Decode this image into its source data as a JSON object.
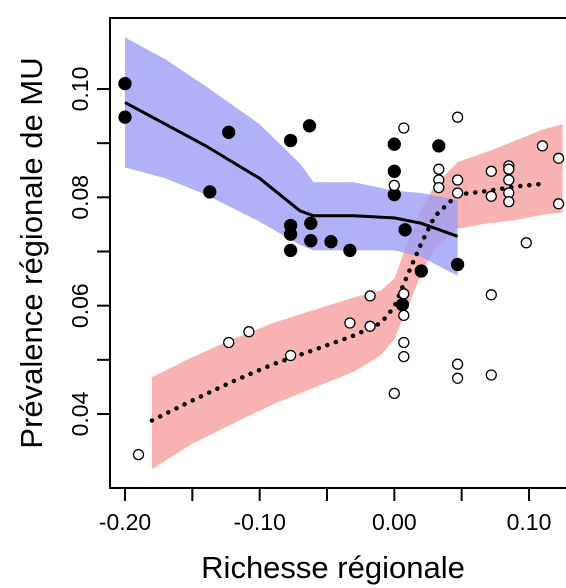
{
  "chart_data": {
    "type": "scatter",
    "xlabel": "Richesse régionale",
    "ylabel": "Prévalence régionale de MU",
    "xlim": [
      -0.21,
      0.125
    ],
    "ylim": [
      0.028,
      0.114
    ],
    "x_ticks": [
      {
        "value": -0.2,
        "label": "-0.20"
      },
      {
        "value": -0.1,
        "label": "-0.10"
      },
      {
        "value": 0.0,
        "label": "0.00"
      },
      {
        "value": 0.1,
        "label": "0.10"
      }
    ],
    "y_ticks": [
      {
        "value": 0.04,
        "label": "0.04"
      },
      {
        "value": 0.06,
        "label": "0.06"
      },
      {
        "value": 0.08,
        "label": "0.08"
      },
      {
        "value": 0.1,
        "label": "0.10"
      }
    ],
    "grid": false,
    "colors": {
      "filled_band": "#9d9df5",
      "open_band": "#f7a0a0",
      "filled_marker": "#000000",
      "open_marker": "#ffffff"
    },
    "series": [
      {
        "marker": "filled",
        "line_style": "solid",
        "points": [
          [
            -0.2,
            0.101
          ],
          [
            -0.2,
            0.0948
          ],
          [
            -0.123,
            0.092
          ],
          [
            -0.137,
            0.081
          ],
          [
            -0.077,
            0.0905
          ],
          [
            -0.063,
            0.0932
          ],
          [
            -0.077,
            0.0748
          ],
          [
            -0.077,
            0.0732
          ],
          [
            -0.077,
            0.0702
          ],
          [
            -0.062,
            0.0752
          ],
          [
            -0.062,
            0.072
          ],
          [
            -0.047,
            0.0718
          ],
          [
            -0.033,
            0.0702
          ],
          [
            0.0,
            0.0898
          ],
          [
            0.0,
            0.0848
          ],
          [
            0.0,
            0.0805
          ],
          [
            0.008,
            0.074
          ],
          [
            0.006,
            0.0602
          ],
          [
            0.02,
            0.0664
          ],
          [
            0.033,
            0.0895
          ],
          [
            0.047,
            0.0676
          ]
        ],
        "smooth": [
          [
            -0.2,
            0.0975
          ],
          [
            -0.17,
            0.0935
          ],
          [
            -0.14,
            0.0895
          ],
          [
            -0.1,
            0.0835
          ],
          [
            -0.07,
            0.0775
          ],
          [
            -0.06,
            0.0766
          ],
          [
            -0.03,
            0.0766
          ],
          [
            0.0,
            0.0762
          ],
          [
            0.02,
            0.0752
          ],
          [
            0.047,
            0.0728
          ]
        ],
        "band_upper": [
          [
            -0.2,
            0.1095
          ],
          [
            -0.17,
            0.1055
          ],
          [
            -0.14,
            0.1005
          ],
          [
            -0.1,
            0.0935
          ],
          [
            -0.07,
            0.0862
          ],
          [
            -0.06,
            0.0828
          ],
          [
            -0.03,
            0.0828
          ],
          [
            0.0,
            0.0812
          ],
          [
            0.02,
            0.0808
          ],
          [
            0.047,
            0.0795
          ]
        ],
        "band_lower": [
          [
            -0.2,
            0.0855
          ],
          [
            -0.17,
            0.0835
          ],
          [
            -0.14,
            0.0805
          ],
          [
            -0.1,
            0.0755
          ],
          [
            -0.07,
            0.0712
          ],
          [
            -0.06,
            0.0702
          ],
          [
            -0.03,
            0.0702
          ],
          [
            0.0,
            0.0702
          ],
          [
            0.02,
            0.069
          ],
          [
            0.047,
            0.0655
          ]
        ]
      },
      {
        "marker": "open",
        "line_style": "dotted",
        "points": [
          [
            -0.19,
            0.0325
          ],
          [
            -0.123,
            0.0532
          ],
          [
            -0.108,
            0.0552
          ],
          [
            -0.077,
            0.0508
          ],
          [
            -0.033,
            0.0568
          ],
          [
            -0.018,
            0.0562
          ],
          [
            -0.018,
            0.0618
          ],
          [
            0.0,
            0.0438
          ],
          [
            0.007,
            0.0928
          ],
          [
            0.0,
            0.0822
          ],
          [
            0.007,
            0.0622
          ],
          [
            0.007,
            0.0582
          ],
          [
            0.007,
            0.0532
          ],
          [
            0.007,
            0.0506
          ],
          [
            0.033,
            0.0852
          ],
          [
            0.033,
            0.0832
          ],
          [
            0.033,
            0.0818
          ],
          [
            0.047,
            0.0948
          ],
          [
            0.047,
            0.0832
          ],
          [
            0.047,
            0.0808
          ],
          [
            0.047,
            0.0492
          ],
          [
            0.047,
            0.0466
          ],
          [
            0.072,
            0.0848
          ],
          [
            0.072,
            0.0802
          ],
          [
            0.085,
            0.0858
          ],
          [
            0.085,
            0.0852
          ],
          [
            0.085,
            0.0832
          ],
          [
            0.085,
            0.0808
          ],
          [
            0.085,
            0.0792
          ],
          [
            0.072,
            0.062
          ],
          [
            0.072,
            0.0472
          ],
          [
            0.098,
            0.0716
          ],
          [
            0.11,
            0.0895
          ],
          [
            0.122,
            0.0872
          ],
          [
            0.122,
            0.0788
          ]
        ],
        "smooth": [
          [
            -0.18,
            0.0388
          ],
          [
            -0.15,
            0.0425
          ],
          [
            -0.12,
            0.046
          ],
          [
            -0.09,
            0.0492
          ],
          [
            -0.06,
            0.0518
          ],
          [
            -0.03,
            0.0545
          ],
          [
            -0.01,
            0.0568
          ],
          [
            0.0,
            0.0598
          ],
          [
            0.01,
            0.0658
          ],
          [
            0.02,
            0.0715
          ],
          [
            0.03,
            0.0765
          ],
          [
            0.047,
            0.0805
          ],
          [
            0.07,
            0.0812
          ],
          [
            0.09,
            0.082
          ],
          [
            0.11,
            0.0825
          ]
        ],
        "band_upper": [
          [
            -0.18,
            0.0468
          ],
          [
            -0.15,
            0.0505
          ],
          [
            -0.12,
            0.0538
          ],
          [
            -0.09,
            0.0568
          ],
          [
            -0.06,
            0.0592
          ],
          [
            -0.03,
            0.0615
          ],
          [
            -0.01,
            0.0628
          ],
          [
            0.0,
            0.065
          ],
          [
            0.01,
            0.0718
          ],
          [
            0.02,
            0.0778
          ],
          [
            0.03,
            0.0822
          ],
          [
            0.047,
            0.0865
          ],
          [
            0.07,
            0.0885
          ],
          [
            0.09,
            0.0905
          ],
          [
            0.11,
            0.0925
          ],
          [
            0.125,
            0.0935
          ]
        ],
        "band_lower": [
          [
            -0.18,
            0.0298
          ],
          [
            -0.15,
            0.0345
          ],
          [
            -0.12,
            0.0382
          ],
          [
            -0.09,
            0.0418
          ],
          [
            -0.06,
            0.0448
          ],
          [
            -0.03,
            0.0478
          ],
          [
            -0.01,
            0.0508
          ],
          [
            0.0,
            0.0538
          ],
          [
            0.01,
            0.0598
          ],
          [
            0.02,
            0.0658
          ],
          [
            0.03,
            0.0705
          ],
          [
            0.047,
            0.0742
          ],
          [
            0.07,
            0.0752
          ],
          [
            0.09,
            0.0758
          ],
          [
            0.11,
            0.0768
          ],
          [
            0.125,
            0.0772
          ]
        ]
      }
    ]
  }
}
